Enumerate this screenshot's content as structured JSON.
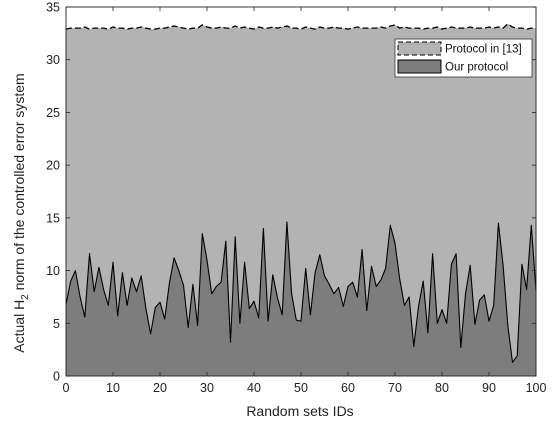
{
  "chart_data": {
    "type": "area",
    "title": "",
    "xlabel": "Random sets IDs",
    "ylabel": {
      "prefix": "Actual H",
      "subscript": "2",
      "suffix": " norm of the controlled error system"
    },
    "xlim": [
      0,
      100
    ],
    "ylim": [
      0,
      35
    ],
    "xticks": [
      0,
      10,
      20,
      30,
      40,
      50,
      60,
      70,
      80,
      90,
      100
    ],
    "yticks": [
      0,
      5,
      10,
      15,
      20,
      25,
      30,
      35
    ],
    "grid": false,
    "legend_position": "top-right",
    "series": [
      {
        "name": "Protocol in [13]",
        "line_style": "dashed",
        "fill_color": "#b3b3b3",
        "values": [
          32.9,
          33.0,
          33.0,
          33.0,
          33.1,
          32.9,
          33.0,
          33.0,
          33.0,
          32.9,
          33.1,
          33.0,
          33.0,
          32.9,
          33.0,
          33.0,
          33.1,
          33.0,
          32.9,
          32.9,
          33.0,
          33.0,
          33.1,
          33.2,
          33.1,
          33.0,
          32.9,
          33.0,
          33.0,
          33.3,
          33.1,
          33.0,
          33.0,
          33.1,
          33.0,
          33.0,
          33.2,
          33.0,
          33.1,
          33.0,
          32.9,
          33.1,
          33.0,
          33.0,
          33.1,
          33.0,
          33.1,
          33.2,
          33.0,
          33.0,
          32.9,
          33.1,
          33.0,
          32.9,
          33.1,
          33.0,
          33.0,
          33.1,
          33.0,
          33.0,
          32.9,
          33.0,
          33.1,
          33.0,
          33.0,
          33.0,
          33.0,
          33.1,
          33.0,
          33.2,
          33.3,
          33.0,
          33.1,
          33.0,
          33.0,
          33.0,
          32.9,
          33.0,
          33.0,
          33.1,
          32.9,
          33.0,
          33.1,
          33.0,
          33.0,
          33.0,
          33.1,
          33.0,
          33.0,
          33.0,
          33.1,
          33.0,
          33.1,
          33.0,
          33.4,
          33.1,
          33.0,
          33.0,
          32.9,
          33.0,
          33.0
        ]
      },
      {
        "name": "Our protocol",
        "line_style": "solid",
        "fill_color": "#7d7d7d",
        "values": [
          6.8,
          9.0,
          10.0,
          7.5,
          5.6,
          11.6,
          8.0,
          10.3,
          8.2,
          6.7,
          10.8,
          5.7,
          9.8,
          6.7,
          9.3,
          8.0,
          9.5,
          6.4,
          4.0,
          6.5,
          7.0,
          5.4,
          8.8,
          11.2,
          10.0,
          8.6,
          4.6,
          8.7,
          4.8,
          13.5,
          11.0,
          7.8,
          8.5,
          8.9,
          12.8,
          3.2,
          13.2,
          5.0,
          10.8,
          6.4,
          7.1,
          5.5,
          14.0,
          5.2,
          9.6,
          7.4,
          5.8,
          14.6,
          7.8,
          5.3,
          5.2,
          10.2,
          5.8,
          9.8,
          11.5,
          9.5,
          8.7,
          7.8,
          8.4,
          6.6,
          8.5,
          8.9,
          7.5,
          12.0,
          6.2,
          10.4,
          8.5,
          9.1,
          10.2,
          14.3,
          12.6,
          9.2,
          6.7,
          7.5,
          2.8,
          6.6,
          9.0,
          4.1,
          11.6,
          5.0,
          6.3,
          5.0,
          10.6,
          11.6,
          2.7,
          7.8,
          10.5,
          4.9,
          7.2,
          7.7,
          5.2,
          6.7,
          14.5,
          10.5,
          4.8,
          1.3,
          1.9,
          10.6,
          8.2,
          14.3,
          8.1
        ]
      }
    ]
  }
}
